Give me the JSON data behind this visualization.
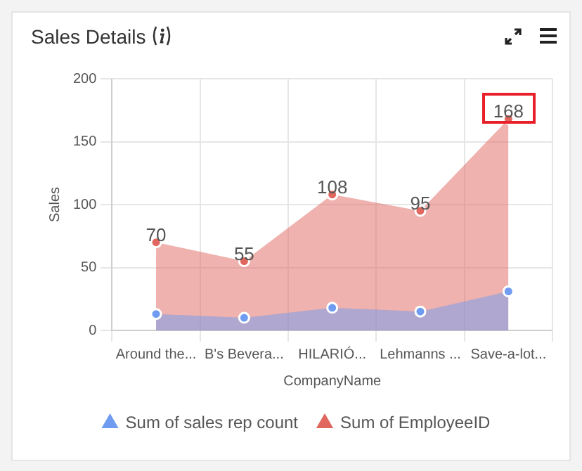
{
  "chart_data": {
    "type": "area",
    "title": "Sales Details",
    "xlabel": "CompanyName",
    "ylabel": "Sales",
    "categories": [
      "Around the...",
      "B's Bevera...",
      "HILARIÓ...",
      "Lehmanns ...",
      "Save-a-lot..."
    ],
    "series": [
      {
        "name": "Sum of sales rep count",
        "color": "#6f9cf0",
        "values": [
          13,
          10,
          18,
          15,
          31
        ]
      },
      {
        "name": "Sum of EmployeeID",
        "color": "#e0665e",
        "values": [
          70,
          55,
          108,
          95,
          168
        ],
        "value_labels": [
          "70",
          "55",
          "108",
          "95",
          "168"
        ]
      }
    ],
    "ylim": [
      0,
      200
    ],
    "yticks": [
      0,
      50,
      100,
      150,
      200
    ],
    "grid": true,
    "legend": "bottom",
    "marker": "circle"
  }
}
